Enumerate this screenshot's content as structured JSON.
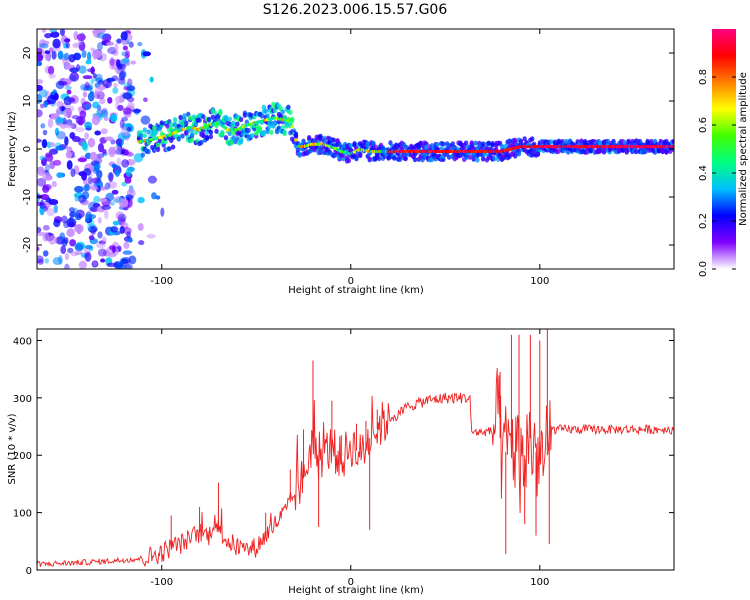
{
  "title": "S126.2023.006.15.57.G06",
  "chart_data": [
    {
      "type": "heatmap",
      "xlabel": "Height of straight line (km)",
      "ylabel": "Frequency (Hz)",
      "xlim": [
        -166,
        171
      ],
      "ylim": [
        -25,
        25
      ],
      "x_ticks": [
        -100,
        0,
        100
      ],
      "y_ticks": [
        -20,
        -10,
        0,
        10,
        20
      ],
      "grid": false,
      "ridge": {
        "x": [
          -112,
          -105,
          -100,
          -95,
          -90,
          -85,
          -80,
          -75,
          -70,
          -65,
          -60,
          -55,
          -50,
          -45,
          -40,
          -35,
          -32,
          -28,
          -25,
          -20,
          -15,
          -10,
          -5,
          0,
          5,
          10,
          20,
          40,
          60,
          70,
          75,
          80,
          85,
          90,
          95,
          100,
          110,
          130,
          150,
          171
        ],
        "y": [
          1.5,
          2.0,
          2.5,
          3.0,
          4.0,
          4.5,
          4.0,
          5.0,
          5.5,
          4.0,
          4.0,
          5.0,
          5.5,
          6.0,
          6.5,
          6.0,
          6.0,
          0.5,
          0.5,
          1.0,
          1.0,
          0.5,
          -0.5,
          -1.0,
          0.0,
          -0.5,
          -0.5,
          -0.5,
          -0.5,
          -0.5,
          -0.5,
          -0.5,
          0.0,
          0.5,
          0.5,
          0.5,
          0.5,
          0.5,
          0.5,
          0.5
        ]
      },
      "colorbar": {
        "label": "Normalized spectral amplitude",
        "range": [
          0,
          1
        ],
        "ticks": [
          "0.0",
          "0.2",
          "0.4",
          "0.6",
          "0.8"
        ],
        "colors": [
          "#ffffff",
          "#8000ff",
          "#0000ff",
          "#00c0ff",
          "#00ff80",
          "#40ff00",
          "#ffff00",
          "#ff8000",
          "#ff0000",
          "#ff0080"
        ]
      }
    },
    {
      "type": "line",
      "xlabel": "Height of straight line (km)",
      "ylabel": "SNR (10 * v/v)",
      "xlim": [
        -166,
        171
      ],
      "ylim": [
        0,
        420
      ],
      "x_ticks": [
        -100,
        0,
        100
      ],
      "y_ticks": [
        0,
        100,
        200,
        300,
        400
      ],
      "grid": false,
      "series": [
        {
          "color": "#ee2222",
          "x": [
            -166,
            -150,
            -130,
            -110,
            -100,
            -95,
            -90,
            -85,
            -80,
            -75,
            -72,
            -70,
            -65,
            -60,
            -55,
            -50,
            -45,
            -40,
            -35,
            -30,
            -25,
            -22,
            -20,
            -18,
            -15,
            -10,
            -5,
            0,
            5,
            10,
            15,
            20,
            25,
            30,
            40,
            50,
            60,
            63,
            64,
            70,
            75,
            78,
            80,
            85,
            90,
            95,
            100,
            104,
            106,
            110,
            120,
            130,
            140,
            150,
            160,
            171
          ],
          "y": [
            10,
            12,
            15,
            20,
            30,
            40,
            45,
            55,
            65,
            60,
            90,
            70,
            50,
            40,
            35,
            40,
            60,
            80,
            100,
            130,
            160,
            200,
            230,
            190,
            200,
            215,
            190,
            220,
            200,
            230,
            250,
            265,
            270,
            285,
            295,
            300,
            300,
            300,
            240,
            240,
            242,
            270,
            190,
            230,
            180,
            230,
            190,
            200,
            245,
            245,
            245,
            245,
            245,
            245,
            245,
            245
          ],
          "spikes": [
            {
              "x": -95,
              "y": 95
            },
            {
              "x": -80,
              "y": 110
            },
            {
              "x": -70,
              "y": 152
            },
            {
              "x": -45,
              "y": 100
            },
            {
              "x": -32,
              "y": 175
            },
            {
              "x": -25,
              "y": 245
            },
            {
              "x": -20,
              "y": 365
            },
            {
              "x": -17,
              "y": 75
            },
            {
              "x": -10,
              "y": 295
            },
            {
              "x": -5,
              "y": 235
            },
            {
              "x": 3,
              "y": 255
            },
            {
              "x": 8,
              "y": 260
            },
            {
              "x": 10,
              "y": 70
            },
            {
              "x": 14,
              "y": 280
            },
            {
              "x": 79,
              "y": 345
            },
            {
              "x": 82,
              "y": 28
            },
            {
              "x": 85,
              "y": 410
            },
            {
              "x": 89,
              "y": 410
            },
            {
              "x": 92,
              "y": 80
            },
            {
              "x": 95,
              "y": 410
            },
            {
              "x": 98,
              "y": 60
            },
            {
              "x": 100,
              "y": 400
            },
            {
              "x": 104,
              "y": 420
            },
            {
              "x": 105,
              "y": 45
            }
          ]
        }
      ]
    }
  ]
}
